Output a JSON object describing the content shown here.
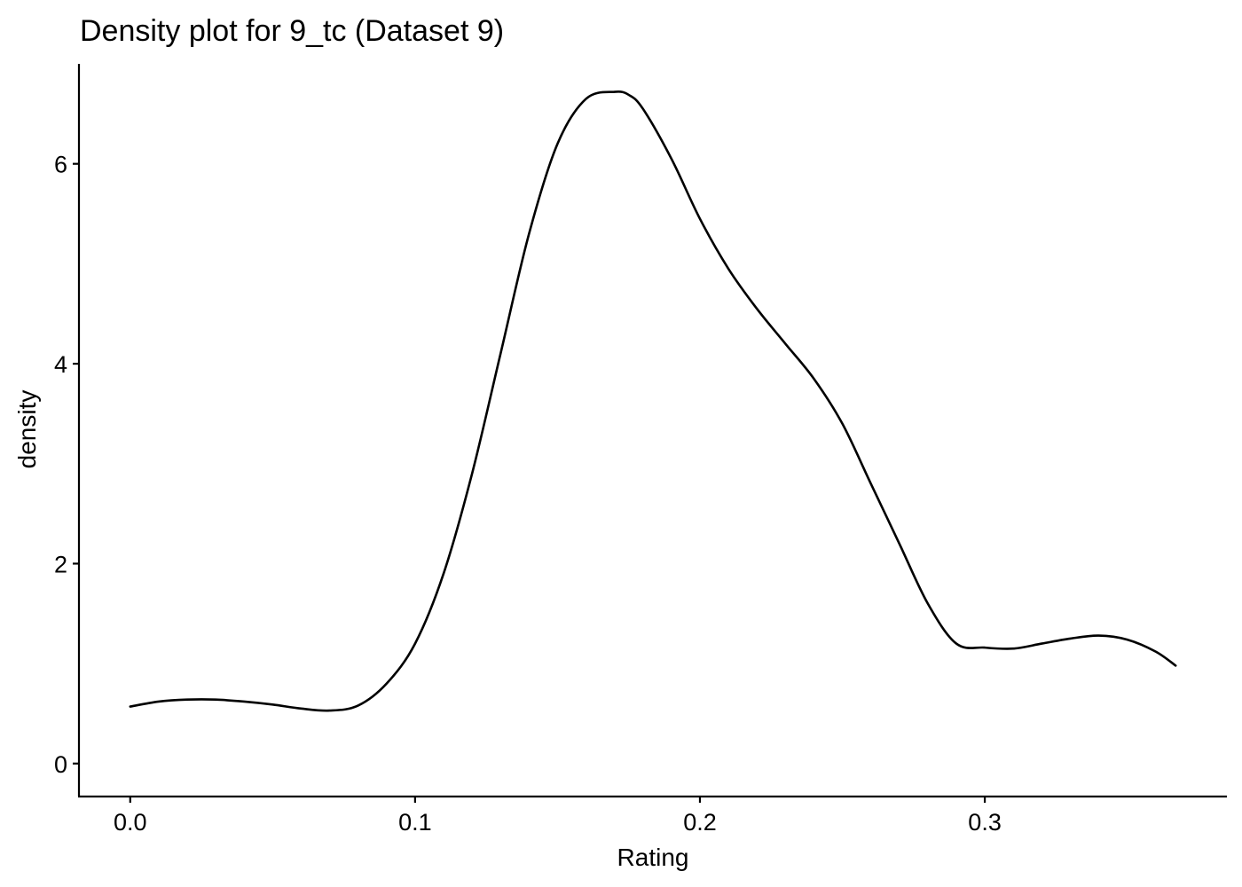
{
  "chart_data": {
    "type": "line",
    "title": "Density plot for 9_tc (Dataset 9)",
    "xlabel": "Rating",
    "ylabel": "density",
    "xlim": [
      -0.018,
      0.385
    ],
    "ylim": [
      -0.33,
      7.0
    ],
    "x_ticks": [
      0.0,
      0.1,
      0.2,
      0.3
    ],
    "x_tick_labels": [
      "0.0",
      "0.1",
      "0.2",
      "0.3"
    ],
    "y_ticks": [
      0,
      2,
      4,
      6
    ],
    "y_tick_labels": [
      "0",
      "2",
      "4",
      "6"
    ],
    "grid": false,
    "legend": "none",
    "line_color": "#000000",
    "series": [
      {
        "x": [
          0.0,
          0.01,
          0.02,
          0.03,
          0.04,
          0.05,
          0.06,
          0.07,
          0.08,
          0.09,
          0.1,
          0.11,
          0.12,
          0.13,
          0.14,
          0.15,
          0.16,
          0.17,
          0.175,
          0.18,
          0.19,
          0.2,
          0.21,
          0.22,
          0.23,
          0.24,
          0.25,
          0.26,
          0.27,
          0.28,
          0.29,
          0.3,
          0.31,
          0.32,
          0.33,
          0.34,
          0.35,
          0.36,
          0.367
        ],
        "y": [
          0.57,
          0.62,
          0.64,
          0.64,
          0.62,
          0.59,
          0.55,
          0.53,
          0.58,
          0.8,
          1.2,
          1.9,
          2.9,
          4.1,
          5.3,
          6.2,
          6.65,
          6.72,
          6.69,
          6.55,
          6.05,
          5.45,
          4.95,
          4.55,
          4.2,
          3.85,
          3.4,
          2.8,
          2.2,
          1.6,
          1.2,
          1.16,
          1.15,
          1.2,
          1.25,
          1.28,
          1.24,
          1.12,
          0.98
        ]
      }
    ]
  }
}
